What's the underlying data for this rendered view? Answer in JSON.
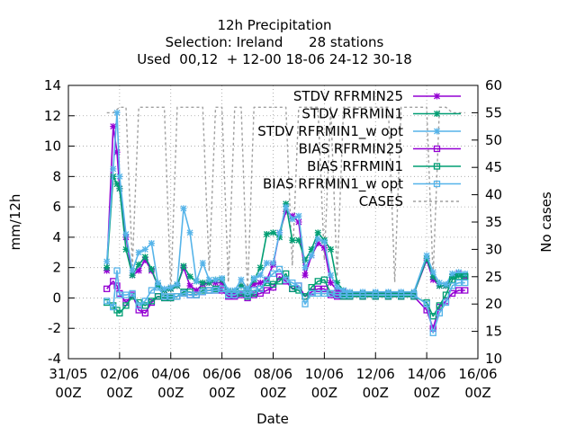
{
  "chart_data": {
    "type": "line",
    "title_lines": [
      "12h Precipitation",
      "Selection: Ireland      28 stations",
      "Used  00,12  + 12-00 18-06 24-12 30-18"
    ],
    "xlabel": "Date",
    "ylabel": "mm/12h",
    "y2label": "No cases",
    "x_ticks": [
      {
        "day": 0,
        "line1": "31/05",
        "line2": "00Z"
      },
      {
        "day": 2,
        "line1": "02/06",
        "line2": "00Z"
      },
      {
        "day": 4,
        "line1": "04/06",
        "line2": "00Z"
      },
      {
        "day": 6,
        "line1": "06/06",
        "line2": "00Z"
      },
      {
        "day": 8,
        "line1": "08/06",
        "line2": "00Z"
      },
      {
        "day": 10,
        "line1": "10/06",
        "line2": "00Z"
      },
      {
        "day": 12,
        "line1": "12/06",
        "line2": "00Z"
      },
      {
        "day": 14,
        "line1": "14/06",
        "line2": "00Z"
      },
      {
        "day": 16,
        "line1": "16/06",
        "line2": "00Z"
      }
    ],
    "xlim": [
      0,
      16
    ],
    "ylim": [
      -4,
      14
    ],
    "y_ticks": [
      -4,
      -2,
      0,
      2,
      4,
      6,
      8,
      10,
      12,
      14
    ],
    "y2lim": [
      10,
      60
    ],
    "y2_ticks": [
      10,
      15,
      20,
      25,
      30,
      35,
      40,
      45,
      50,
      55,
      60
    ],
    "grid": true,
    "legend_position": "top-right",
    "series": [
      {
        "name": "STDV RFRMIN25",
        "axis": "y1",
        "color": "#9400d3",
        "marker": "star",
        "x": [
          1.5,
          1.75,
          1.9,
          2.0,
          2.25,
          2.5,
          2.75,
          3.0,
          3.25,
          3.5,
          3.75,
          4.0,
          4.25,
          4.5,
          4.75,
          5.0,
          5.25,
          5.5,
          5.75,
          6.0,
          6.25,
          6.5,
          6.75,
          7.0,
          7.25,
          7.5,
          7.75,
          8.0,
          8.25,
          8.5,
          8.75,
          9.0,
          9.25,
          9.5,
          9.75,
          10.0,
          10.25,
          10.5,
          10.75,
          11.0,
          11.5,
          12.0,
          12.5,
          13.0,
          13.5,
          14.0,
          14.25,
          14.5,
          14.75,
          15.0,
          15.25,
          15.5
        ],
        "y": [
          1.8,
          11.3,
          9.6,
          7.2,
          4.0,
          1.5,
          1.8,
          2.5,
          1.8,
          0.8,
          0.5,
          0.6,
          0.8,
          2.0,
          0.8,
          0.5,
          0.9,
          1.0,
          1.0,
          1.0,
          0.4,
          0.4,
          0.8,
          0.5,
          0.9,
          1.0,
          1.2,
          2.2,
          4.3,
          5.7,
          5.4,
          5.0,
          1.5,
          2.8,
          3.6,
          3.3,
          1.0,
          0.5,
          0.4,
          0.3,
          0.3,
          0.3,
          0.3,
          0.3,
          0.3,
          2.5,
          1.2,
          0.8,
          0.8,
          1.4,
          1.6,
          1.4
        ]
      },
      {
        "name": "STDV RFRMIN1",
        "axis": "y1",
        "color": "#009e73",
        "marker": "star",
        "x": [
          1.5,
          1.75,
          1.9,
          2.0,
          2.25,
          2.5,
          2.75,
          3.0,
          3.25,
          3.5,
          3.75,
          4.0,
          4.25,
          4.5,
          4.75,
          5.0,
          5.25,
          5.5,
          5.75,
          6.0,
          6.25,
          6.5,
          6.75,
          7.0,
          7.25,
          7.5,
          7.75,
          8.0,
          8.25,
          8.5,
          8.75,
          9.0,
          9.25,
          9.5,
          9.75,
          10.0,
          10.25,
          10.5,
          10.75,
          11.0,
          11.5,
          12.0,
          12.5,
          13.0,
          13.5,
          14.0,
          14.25,
          14.5,
          14.75,
          15.0,
          15.25,
          15.5
        ],
        "y": [
          2.0,
          8.0,
          7.5,
          7.2,
          3.2,
          1.5,
          2.2,
          2.7,
          1.9,
          0.8,
          0.5,
          0.6,
          0.8,
          2.1,
          1.4,
          1.1,
          1.0,
          1.0,
          1.2,
          1.2,
          0.4,
          0.4,
          0.8,
          0.5,
          1.2,
          2.0,
          4.2,
          4.3,
          4.0,
          6.2,
          3.8,
          3.8,
          2.5,
          3.2,
          4.3,
          3.8,
          3.2,
          1.0,
          0.5,
          0.3,
          0.3,
          0.3,
          0.3,
          0.3,
          0.3,
          2.6,
          1.4,
          0.8,
          0.8,
          1.4,
          1.5,
          1.5
        ]
      },
      {
        "name": "STDV RFRMIN1_w opt",
        "axis": "y1",
        "color": "#56b4e9",
        "marker": "star",
        "x": [
          1.5,
          1.75,
          1.9,
          2.0,
          2.25,
          2.5,
          2.75,
          3.0,
          3.25,
          3.5,
          3.75,
          4.0,
          4.25,
          4.5,
          4.75,
          5.0,
          5.25,
          5.5,
          5.75,
          6.0,
          6.25,
          6.5,
          6.75,
          7.0,
          7.25,
          7.5,
          7.75,
          8.0,
          8.25,
          8.5,
          8.75,
          9.0,
          9.25,
          9.5,
          9.75,
          10.0,
          10.25,
          10.5,
          10.75,
          11.0,
          11.5,
          12.0,
          12.5,
          13.0,
          13.5,
          14.0,
          14.25,
          14.5,
          14.75,
          15.0,
          15.25,
          15.5
        ],
        "y": [
          2.4,
          8.5,
          12.2,
          8.0,
          4.2,
          1.8,
          3.0,
          3.2,
          3.6,
          1.0,
          0.6,
          0.7,
          0.9,
          5.9,
          4.3,
          1.1,
          2.3,
          1.2,
          1.2,
          1.3,
          0.5,
          0.5,
          1.2,
          0.6,
          1.3,
          1.5,
          2.3,
          2.3,
          4.3,
          6.0,
          5.2,
          5.4,
          2.0,
          2.8,
          3.9,
          3.7,
          1.5,
          0.7,
          0.5,
          0.4,
          0.4,
          0.4,
          0.4,
          0.4,
          0.4,
          2.8,
          1.7,
          1.0,
          0.9,
          1.6,
          1.7,
          1.6
        ]
      },
      {
        "name": "BIAS RFRMIN25",
        "axis": "y1",
        "color": "#9400d3",
        "marker": "square",
        "x": [
          1.5,
          1.75,
          1.9,
          2.0,
          2.25,
          2.5,
          2.75,
          3.0,
          3.25,
          3.5,
          3.75,
          4.0,
          4.25,
          4.5,
          4.75,
          5.0,
          5.25,
          5.5,
          5.75,
          6.0,
          6.25,
          6.5,
          6.75,
          7.0,
          7.25,
          7.5,
          7.75,
          8.0,
          8.25,
          8.5,
          8.75,
          9.0,
          9.25,
          9.5,
          9.75,
          10.0,
          10.25,
          10.5,
          10.75,
          11.0,
          11.5,
          12.0,
          12.5,
          13.0,
          13.5,
          14.0,
          14.25,
          14.5,
          14.75,
          15.0,
          15.25,
          15.5
        ],
        "y": [
          0.6,
          1.1,
          0.8,
          0.3,
          -0.3,
          0.2,
          -0.8,
          -1.0,
          -0.3,
          0.1,
          0.0,
          0.0,
          0.1,
          0.3,
          0.2,
          0.2,
          0.4,
          0.5,
          0.5,
          0.5,
          0.1,
          0.1,
          0.2,
          0.0,
          0.2,
          0.3,
          0.5,
          0.7,
          1.4,
          1.1,
          0.6,
          0.8,
          0.1,
          0.4,
          0.6,
          0.6,
          0.2,
          0.1,
          0.1,
          0.1,
          0.1,
          0.1,
          0.1,
          0.1,
          0.1,
          -0.8,
          -2.0,
          -0.6,
          -0.2,
          0.3,
          0.5,
          0.5
        ]
      },
      {
        "name": "BIAS RFRMIN1",
        "axis": "y1",
        "color": "#009e73",
        "marker": "square",
        "x": [
          1.5,
          1.75,
          1.9,
          2.0,
          2.25,
          2.5,
          2.75,
          3.0,
          3.25,
          3.5,
          3.75,
          4.0,
          4.25,
          4.5,
          4.75,
          5.0,
          5.25,
          5.5,
          5.75,
          6.0,
          6.25,
          6.5,
          6.75,
          7.0,
          7.25,
          7.5,
          7.75,
          8.0,
          8.25,
          8.5,
          8.75,
          9.0,
          9.25,
          9.5,
          9.75,
          10.0,
          10.25,
          10.5,
          10.75,
          11.0,
          11.5,
          12.0,
          12.5,
          13.0,
          13.5,
          14.0,
          14.25,
          14.5,
          14.75,
          15.0,
          15.25,
          15.5
        ],
        "y": [
          -0.3,
          -0.5,
          -0.8,
          -1.0,
          -0.5,
          0.1,
          -0.3,
          -0.5,
          -0.2,
          0.1,
          0.0,
          0.0,
          0.1,
          0.4,
          0.4,
          0.2,
          0.5,
          0.5,
          0.6,
          0.6,
          0.2,
          0.2,
          0.3,
          0.1,
          0.3,
          0.6,
          1.0,
          0.9,
          1.1,
          1.6,
          0.6,
          0.5,
          0.1,
          0.7,
          1.1,
          1.2,
          0.3,
          0.2,
          0.1,
          0.1,
          0.1,
          0.1,
          0.1,
          0.1,
          0.1,
          -0.3,
          -1.2,
          -0.5,
          0.2,
          1.2,
          1.4,
          1.4
        ]
      },
      {
        "name": "BIAS RFRMIN1_w opt",
        "axis": "y1",
        "color": "#56b4e9",
        "marker": "square",
        "x": [
          1.5,
          1.75,
          1.9,
          2.0,
          2.25,
          2.5,
          2.75,
          3.0,
          3.25,
          3.5,
          3.75,
          4.0,
          4.25,
          4.5,
          4.75,
          5.0,
          5.25,
          5.5,
          5.75,
          6.0,
          6.25,
          6.5,
          6.75,
          7.0,
          7.25,
          7.5,
          7.75,
          8.0,
          8.25,
          8.5,
          8.75,
          9.0,
          9.25,
          9.5,
          9.75,
          10.0,
          10.25,
          10.5,
          10.75,
          11.0,
          11.5,
          12.0,
          12.5,
          13.0,
          13.5,
          14.0,
          14.25,
          14.5,
          14.75,
          15.0,
          15.25,
          15.5
        ],
        "y": [
          -0.2,
          -0.6,
          1.8,
          0.2,
          0.2,
          0.3,
          -0.5,
          -0.2,
          0.5,
          0.7,
          0.1,
          0.1,
          0.1,
          0.3,
          0.2,
          0.2,
          0.4,
          0.5,
          0.5,
          0.6,
          0.2,
          0.2,
          0.5,
          0.2,
          0.5,
          0.6,
          1.2,
          1.6,
          1.9,
          1.2,
          1.0,
          0.8,
          -0.4,
          0.3,
          0.3,
          0.3,
          0.3,
          0.2,
          0.2,
          0.2,
          0.2,
          0.2,
          0.2,
          0.2,
          0.2,
          -0.4,
          -2.3,
          -1.0,
          -0.3,
          0.8,
          1.0,
          1.0
        ]
      },
      {
        "name": "CASES",
        "axis": "y2",
        "color": "#a0a0a0",
        "marker": "none",
        "dashed": true,
        "x": [
          1.5,
          1.75,
          2.0,
          2.25,
          2.5,
          2.75,
          3.0,
          3.25,
          3.5,
          3.75,
          4.0,
          4.25,
          4.5,
          4.75,
          5.0,
          5.25,
          5.5,
          5.75,
          6.0,
          6.25,
          6.5,
          6.75,
          7.0,
          7.25,
          7.5,
          7.75,
          8.0,
          8.25,
          8.5,
          8.75,
          9.0,
          9.25,
          9.5,
          9.75,
          10.0,
          10.25,
          10.5,
          10.75,
          11.0,
          11.25,
          11.5,
          11.75,
          12.0,
          12.25,
          12.5,
          12.75,
          13.0,
          13.25,
          13.5,
          13.75,
          14.0,
          14.25,
          14.5,
          14.75,
          15.0,
          15.25,
          15.5
        ],
        "y": [
          55,
          55,
          56,
          56,
          27,
          56,
          56,
          56,
          56,
          56,
          22,
          56,
          56,
          56,
          56,
          56,
          26,
          56,
          56,
          24,
          56,
          56,
          22,
          56,
          56,
          56,
          56,
          56,
          56,
          27,
          56,
          56,
          56,
          56,
          28,
          56,
          25,
          56,
          56,
          56,
          56,
          56,
          56,
          56,
          56,
          24,
          56,
          56,
          56,
          56,
          56,
          25,
          56,
          56,
          55,
          55,
          55
        ]
      }
    ]
  }
}
